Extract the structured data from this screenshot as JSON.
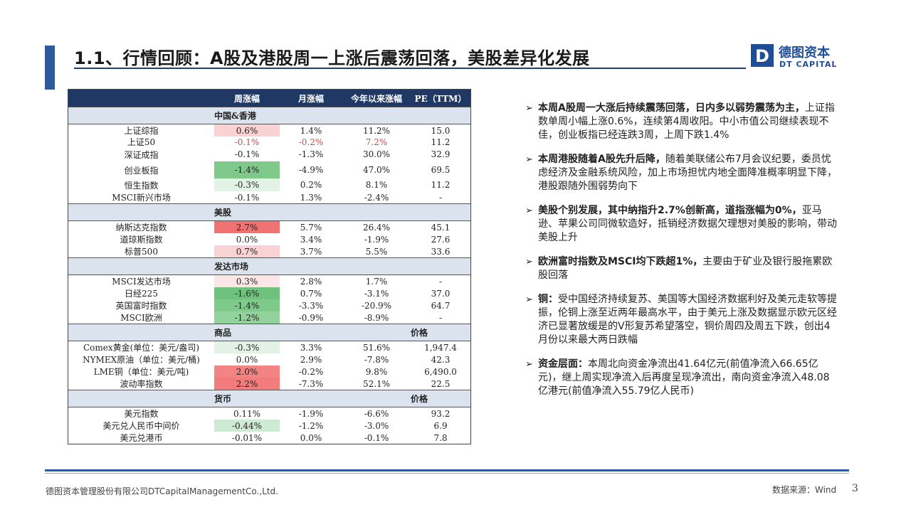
{
  "title": "1.1、行情回顾：A股及港股周一上涨后震荡回落，美股差异化发展",
  "logo": {
    "cn": "德图资本",
    "en": "DT CAPITAL",
    "mark": "D"
  },
  "table": {
    "headers": [
      "",
      "周涨幅",
      "月涨幅",
      "今年以来涨幅",
      "PE（TTM）"
    ],
    "sections": [
      {
        "label": "中国&香港",
        "extra": "",
        "rows": [
          {
            "name": "上证综指",
            "week": "0.6%",
            "month": "1.4%",
            "ytd": "11.2%",
            "pe": "15.0",
            "bg": "#f9d3d3",
            "red": false
          },
          {
            "name": "上证50",
            "week": "-0.1%",
            "month": "-0.2%",
            "ytd": "7.2%",
            "pe": "11.2",
            "bg": "#ffffff",
            "red": true
          },
          {
            "name": "深证成指",
            "week": "-0.1%",
            "month": "-1.3%",
            "ytd": "30.0%",
            "pe": "32.9",
            "bg": "#ffffff",
            "red": false
          },
          {
            "name": "创业板指",
            "week": "-1.4%",
            "month": "-4.9%",
            "ytd": "47.0%",
            "pe": "69.5",
            "bg": "#7fc98a",
            "red": false
          },
          {
            "name": "恒生指数",
            "week": "-0.3%",
            "month": "0.2%",
            "ytd": "8.1%",
            "pe": "11.2",
            "bg": "#e2f2e4",
            "red": false
          },
          {
            "name": "MSCI新兴市场",
            "week": "-0.1%",
            "month": "1.3%",
            "ytd": "-2.4%",
            "pe": "-",
            "bg": "#ffffff",
            "red": false
          }
        ]
      },
      {
        "label": "美股",
        "extra": "",
        "rows": [
          {
            "name": "纳斯达克指数",
            "week": "2.7%",
            "month": "5.7%",
            "ytd": "26.4%",
            "pe": "45.1",
            "bg": "#f07272",
            "red": false
          },
          {
            "name": "道琼斯指数",
            "week": "0.0%",
            "month": "3.4%",
            "ytd": "-1.9%",
            "pe": "27.6",
            "bg": "#ffffff",
            "red": false
          },
          {
            "name": "标普500",
            "week": "0.7%",
            "month": "3.7%",
            "ytd": "5.5%",
            "pe": "33.6",
            "bg": "#f9d3d3",
            "red": false
          }
        ]
      },
      {
        "label": "发达市场",
        "extra": "",
        "rows": [
          {
            "name": "MSCI发达市场",
            "week": "0.3%",
            "month": "2.8%",
            "ytd": "1.7%",
            "pe": "-",
            "bg": "#fde6e6",
            "red": false
          },
          {
            "name": "日经225",
            "week": "-1.6%",
            "month": "0.7%",
            "ytd": "-3.1%",
            "pe": "37.0",
            "bg": "#6fc27c",
            "red": false
          },
          {
            "name": "英国富时指数",
            "week": "-1.4%",
            "month": "-3.3%",
            "ytd": "-20.9%",
            "pe": "64.7",
            "bg": "#7fc98a",
            "red": false
          },
          {
            "name": "MSCI欧洲",
            "week": "-1.2%",
            "month": "-0.9%",
            "ytd": "-8.9%",
            "pe": "-",
            "bg": "#93d29c",
            "red": false
          }
        ]
      },
      {
        "label": "商品",
        "extra": "价格",
        "rows": [
          {
            "name": "Comex黄金(单位：美元/盎司)",
            "week": "-0.3%",
            "month": "3.3%",
            "ytd": "51.6%",
            "pe": "1,947.4",
            "bg": "#e2f2e4",
            "red": false
          },
          {
            "name": "NYMEX原油（单位：美元/桶)",
            "week": "0.0%",
            "month": "2.9%",
            "ytd": "-7.8%",
            "pe": "42.3",
            "bg": "#ffffff",
            "red": false
          },
          {
            "name": "LME铜（单位：美元/吨)",
            "week": "2.0%",
            "month": "-0.2%",
            "ytd": "9.8%",
            "pe": "6,490.0",
            "bg": "#f48484",
            "red": false
          },
          {
            "name": "波动率指数",
            "week": "2.2%",
            "month": "-7.3%",
            "ytd": "52.1%",
            "pe": "22.5",
            "bg": "#f27b7b",
            "red": false
          }
        ]
      },
      {
        "label": "货币",
        "extra": "价格",
        "rows": [
          {
            "name": "美元指数",
            "week": "0.11%",
            "month": "-1.9%",
            "ytd": "-6.6%",
            "pe": "93.2",
            "bg": "#ffffff",
            "red": false
          },
          {
            "name": "美元兑人民币中间价",
            "week": "-0.44%",
            "month": "-1.2%",
            "ytd": "-3.0%",
            "pe": "6.9",
            "bg": "#cfead3",
            "red": false
          },
          {
            "name": "美元兑港币",
            "week": "-0.01%",
            "month": "0.0%",
            "ytd": "-0.1%",
            "pe": "7.8",
            "bg": "#ffffff",
            "red": false
          }
        ]
      }
    ]
  },
  "bullets": [
    {
      "bold": "本周A股周一大涨后持续震荡回落，日内多以弱势震荡为主，",
      "text": "上证指数单周小幅上涨0.6%，连续第4周收阳。中小市值公司继续表现不佳，创业板指已经连跌3周，上周下跌1.4%"
    },
    {
      "bold": "本周港股随着A股先升后降，",
      "text": "随着美联储公布7月会议纪要，委员忧虑经济及金融系统风险，加上市场担忧内地全面降准概率明显下降，港股跟随外围弱势向下"
    },
    {
      "bold": "美股个别发展，其中纳指升2.7%创新高，道指涨幅为0%，",
      "text": "亚马逊、苹果公司同微软造好，抵销经济数据欠理想对美股的影响，带动美股上升"
    },
    {
      "bold": "欧洲富时指数及MSCI均下跌超1%，",
      "text": "主要由于矿业及银行股拖累欧股回落"
    },
    {
      "bold": "铜：",
      "text": "受中国经济持续复苏、美国等大国经济数据利好及美元走软等提振，伦铜上涨至近两年最高水平，由于美元上涨及数据显示欧元区经济已显著放缓是的V形复苏希望落空，铜价周四及周五下跌，创出4月份以来最大两日跌幅"
    },
    {
      "bold": "资金层面：",
      "text": "本周北向资金净流出41.64亿元(前值净流入66.65亿元)，继上周实现净流入后再度呈现净流出，南向资金净流入48.08亿港元(前值净流入55.79亿人民币)"
    }
  ],
  "footer": {
    "company": "德图资本管理股份有限公司DTCapitalManagementCo.,Ltd.",
    "source": "数据来源：Wind",
    "page": "3"
  }
}
